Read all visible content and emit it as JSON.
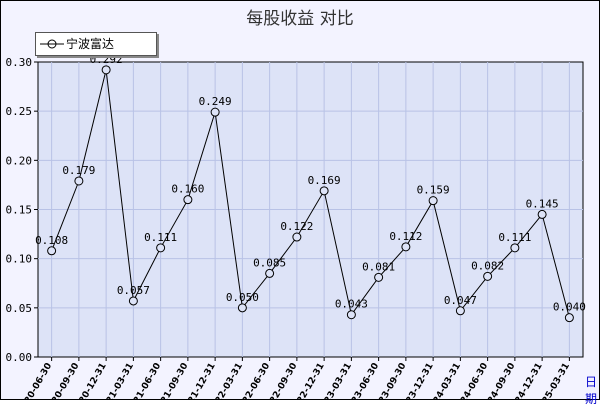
{
  "chart_data": {
    "type": "line",
    "title": "每股收益 对比",
    "x": [
      "2020-06-30",
      "2020-09-30",
      "2020-12-31",
      "2021-03-31",
      "2021-06-30",
      "2021-09-30",
      "2021-12-31",
      "2022-03-31",
      "2022-06-30",
      "2022-09-30",
      "2022-12-31",
      "2023-03-31",
      "2023-06-30",
      "2023-09-30",
      "2023-12-31",
      "2024-03-31",
      "2024-06-30",
      "2024-09-30",
      "2024-12-31",
      "2025-03-31"
    ],
    "series": [
      {
        "name": "宁波富达",
        "values": [
          0.108,
          0.179,
          0.292,
          0.057,
          0.111,
          0.16,
          0.249,
          0.05,
          0.085,
          0.122,
          0.169,
          0.043,
          0.081,
          0.112,
          0.159,
          0.047,
          0.082,
          0.111,
          0.145,
          0.04
        ],
        "labels": [
          "0.108",
          "0.179",
          "0.292",
          "0.057",
          "0.111",
          "0.160",
          "0.249",
          "0.050",
          "0.085",
          "0.122",
          "0.169",
          "0.043",
          "0.081",
          "0.112",
          "0.159",
          "0.047",
          "0.082",
          "0.111",
          "0.145",
          "0.040"
        ]
      }
    ],
    "xlabel": "日期",
    "ylabel": "",
    "ylim": [
      0,
      0.3
    ],
    "yticks": [
      "0.00",
      "0.05",
      "0.10",
      "0.15",
      "0.20",
      "0.25",
      "0.30"
    ],
    "grid": true,
    "legend": "top-left",
    "colors": {
      "plot_bg": "#dde3f7",
      "grid": "#b8c2e6",
      "line": "#000000",
      "outer_bg": "#f3f3ff"
    }
  }
}
